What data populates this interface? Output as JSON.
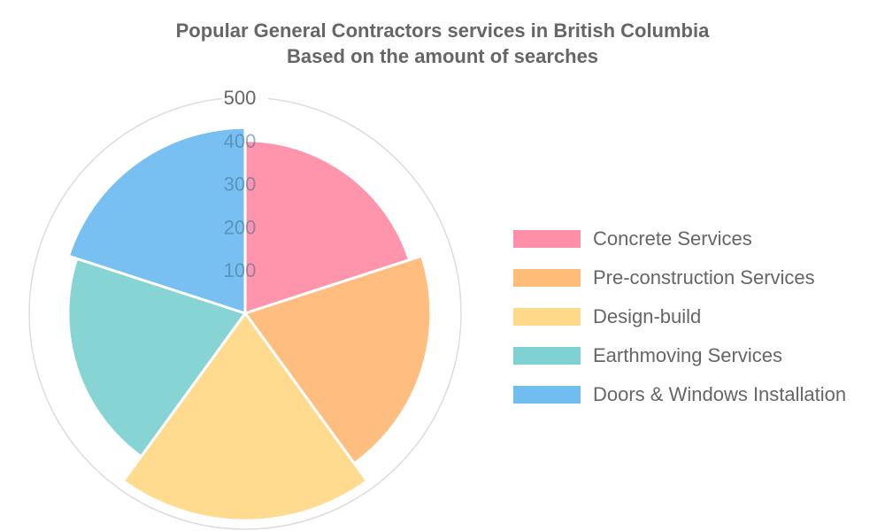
{
  "chart_data": {
    "type": "polarArea",
    "title": "Popular General Contractors services in British Columbia",
    "subtitle": "Based on the amount of searches",
    "categories": [
      "Concrete Services",
      "Pre-construction Services",
      "Design-build",
      "Earthmoving Services",
      "Doors & Windows Installation"
    ],
    "values": [
      400,
      430,
      480,
      410,
      430
    ],
    "colors": [
      "#ff8fa8",
      "#ffbb78",
      "#ffd98a",
      "#80d2d2",
      "#70bdf0"
    ],
    "radial_axis": {
      "min": 0,
      "max": 500,
      "ticks": [
        100,
        200,
        300,
        400,
        500
      ]
    },
    "grid": true,
    "legend_position": "right"
  }
}
